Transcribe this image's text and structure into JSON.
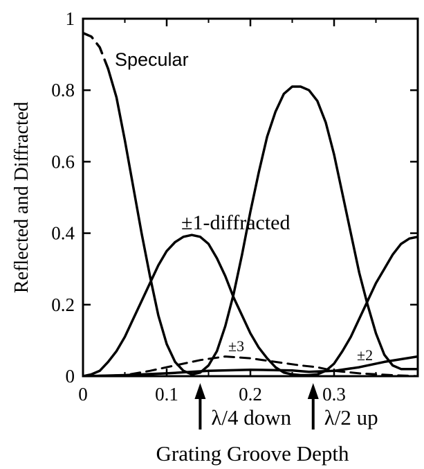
{
  "chart_data": {
    "type": "line",
    "title": "",
    "xlabel": "Grating Groove Depth",
    "ylabel": "Reflected and Diffracted",
    "xlim": [
      0,
      0.4
    ],
    "ylim": [
      0,
      1
    ],
    "x_ticks": [
      {
        "value": 0,
        "label": "0"
      },
      {
        "value": 0.1,
        "label": "0.1"
      },
      {
        "value": 0.2,
        "label": "0.2"
      },
      {
        "value": 0.3,
        "label": "0.3"
      }
    ],
    "y_ticks": [
      {
        "value": 0,
        "label": "0"
      },
      {
        "value": 0.2,
        "label": "0.2"
      },
      {
        "value": 0.4,
        "label": "0.4"
      },
      {
        "value": 0.6,
        "label": "0.6"
      },
      {
        "value": 0.8,
        "label": "0.8"
      },
      {
        "value": 1,
        "label": "1"
      }
    ],
    "grid": false,
    "legend": "none",
    "series": [
      {
        "name": "Specular",
        "style": "solid-with-dashed-start",
        "x": [
          0,
          0.01,
          0.02,
          0.03,
          0.04,
          0.05,
          0.06,
          0.07,
          0.08,
          0.09,
          0.1,
          0.11,
          0.12,
          0.13,
          0.14,
          0.15,
          0.16,
          0.17,
          0.18,
          0.19,
          0.2,
          0.21,
          0.22,
          0.23,
          0.24,
          0.25,
          0.26,
          0.27,
          0.28,
          0.29,
          0.3,
          0.31,
          0.32,
          0.33,
          0.34,
          0.35,
          0.36,
          0.37,
          0.38,
          0.39,
          0.4
        ],
        "values": [
          0.96,
          0.95,
          0.92,
          0.86,
          0.78,
          0.66,
          0.53,
          0.4,
          0.28,
          0.17,
          0.09,
          0.04,
          0.015,
          0.005,
          0.01,
          0.03,
          0.07,
          0.14,
          0.23,
          0.34,
          0.46,
          0.57,
          0.67,
          0.74,
          0.79,
          0.81,
          0.81,
          0.8,
          0.77,
          0.71,
          0.62,
          0.51,
          0.4,
          0.29,
          0.2,
          0.12,
          0.06,
          0.03,
          0.02,
          0.02,
          0.02
        ]
      },
      {
        "name": "±1-diffracted",
        "style": "solid",
        "x": [
          0,
          0.01,
          0.02,
          0.03,
          0.04,
          0.05,
          0.06,
          0.07,
          0.08,
          0.09,
          0.1,
          0.11,
          0.12,
          0.13,
          0.14,
          0.15,
          0.16,
          0.17,
          0.18,
          0.19,
          0.2,
          0.21,
          0.22,
          0.23,
          0.24,
          0.25,
          0.26,
          0.27,
          0.28,
          0.29,
          0.3,
          0.31,
          0.32,
          0.33,
          0.34,
          0.35,
          0.36,
          0.37,
          0.38,
          0.39,
          0.4
        ],
        "values": [
          0,
          0.005,
          0.015,
          0.04,
          0.07,
          0.11,
          0.16,
          0.21,
          0.26,
          0.31,
          0.35,
          0.375,
          0.39,
          0.395,
          0.39,
          0.37,
          0.33,
          0.28,
          0.22,
          0.17,
          0.12,
          0.08,
          0.05,
          0.025,
          0.01,
          0.005,
          0.003,
          0.003,
          0.005,
          0.015,
          0.035,
          0.07,
          0.11,
          0.16,
          0.21,
          0.26,
          0.3,
          0.34,
          0.37,
          0.385,
          0.39
        ]
      },
      {
        "name": "±2",
        "style": "solid",
        "x": [
          0,
          0.05,
          0.1,
          0.15,
          0.2,
          0.25,
          0.27,
          0.3,
          0.33,
          0.36,
          0.4
        ],
        "values": [
          0,
          0.003,
          0.008,
          0.015,
          0.018,
          0.016,
          0.012,
          0.015,
          0.025,
          0.04,
          0.055
        ]
      },
      {
        "name": "±3",
        "style": "dashed",
        "x": [
          0,
          0.05,
          0.08,
          0.11,
          0.14,
          0.17,
          0.2,
          0.23,
          0.26,
          0.28,
          0.3,
          0.33,
          0.37,
          0.4
        ],
        "values": [
          0,
          0.003,
          0.015,
          0.03,
          0.045,
          0.055,
          0.05,
          0.04,
          0.03,
          0.025,
          0.015,
          0.008,
          0.003,
          0
        ]
      }
    ],
    "annotations": [
      {
        "text": "λ/4 down",
        "x": 0.14,
        "arrow": true
      },
      {
        "text": "λ/2 up",
        "x": 0.275,
        "arrow": true
      }
    ]
  }
}
